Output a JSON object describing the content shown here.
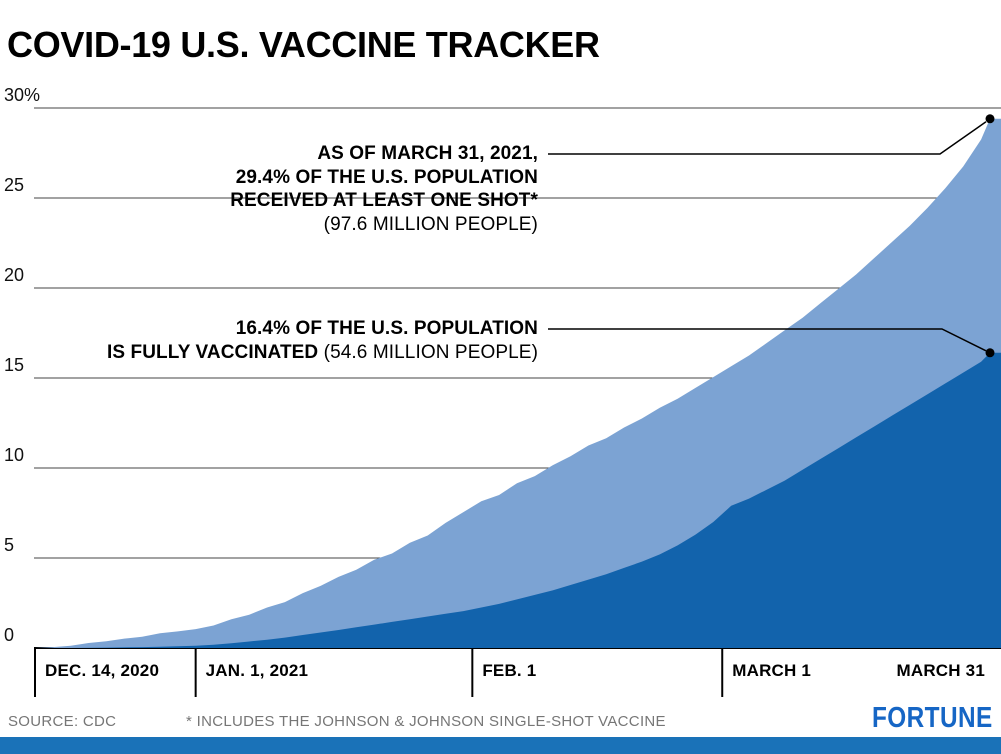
{
  "title": "COVID-19 U.S. VACCINE TRACKER",
  "annotations": {
    "one_shot": {
      "line1": "AS OF MARCH 31, 2021,",
      "line2": "29.4% OF THE U.S. POPULATION",
      "line3": "RECEIVED AT LEAST ONE SHOT*",
      "line4": "(97.6 MILLION PEOPLE)"
    },
    "fully": {
      "line1": "16.4% OF THE U.S. POPULATION",
      "line2_bold": "IS FULLY VACCINATED",
      "line2_regular": " (54.6 MILLION PEOPLE)"
    }
  },
  "footer": {
    "source": "SOURCE: CDC",
    "footnote": "* INCLUDES THE JOHNSON & JOHNSON SINGLE-SHOT VACCINE",
    "logo": "FORTUNE"
  },
  "colors": {
    "accent_blue": "#1a72b8",
    "logo_blue": "#1666c5",
    "light_area": "#7ca3d3",
    "dark_area": "#1263ac"
  },
  "chart_data": {
    "type": "area",
    "title": "COVID-19 U.S. Vaccine Tracker",
    "x_unit": "days since Dec. 14, 2020",
    "x_range": [
      0,
      107
    ],
    "y_range": [
      0,
      30
    ],
    "grid": true,
    "legend_position": "annotated-inline",
    "y_ticks": [
      {
        "label": "30%",
        "value": 30
      },
      {
        "label": "25",
        "value": 25
      },
      {
        "label": "20",
        "value": 20
      },
      {
        "label": "15",
        "value": 15
      },
      {
        "label": "10",
        "value": 10
      },
      {
        "label": "5",
        "value": 5
      },
      {
        "label": "0",
        "value": 0
      }
    ],
    "x_ticks": [
      {
        "label": "DEC. 14, 2020",
        "day": 0,
        "tick": true
      },
      {
        "label": "JAN. 1, 2021",
        "day": 18,
        "tick": true
      },
      {
        "label": "FEB. 1",
        "day": 49,
        "tick": true
      },
      {
        "label": "MARCH 1",
        "day": 77,
        "tick": true
      },
      {
        "label": "MARCH 31",
        "day": 107,
        "tick": false,
        "align": "right"
      }
    ],
    "colors": {
      "one_shot": "#7ca3d3",
      "fully_vaccinated": "#1263ac"
    },
    "series": [
      {
        "name": "Received at least one shot",
        "final_value_pct": 29.4,
        "final_people": "97.6 million",
        "points": [
          [
            0,
            0
          ],
          [
            2,
            0.05
          ],
          [
            4,
            0.12
          ],
          [
            6,
            0.28
          ],
          [
            8,
            0.38
          ],
          [
            10,
            0.52
          ],
          [
            12,
            0.62
          ],
          [
            14,
            0.82
          ],
          [
            16,
            0.92
          ],
          [
            18,
            1.05
          ],
          [
            20,
            1.25
          ],
          [
            22,
            1.6
          ],
          [
            24,
            1.85
          ],
          [
            26,
            2.25
          ],
          [
            28,
            2.55
          ],
          [
            30,
            3.05
          ],
          [
            32,
            3.45
          ],
          [
            34,
            3.95
          ],
          [
            36,
            4.35
          ],
          [
            38,
            4.9
          ],
          [
            40,
            5.25
          ],
          [
            42,
            5.85
          ],
          [
            44,
            6.25
          ],
          [
            46,
            6.95
          ],
          [
            48,
            7.55
          ],
          [
            50,
            8.15
          ],
          [
            52,
            8.5
          ],
          [
            54,
            9.15
          ],
          [
            56,
            9.55
          ],
          [
            58,
            10.15
          ],
          [
            60,
            10.65
          ],
          [
            62,
            11.25
          ],
          [
            64,
            11.65
          ],
          [
            66,
            12.25
          ],
          [
            68,
            12.75
          ],
          [
            70,
            13.35
          ],
          [
            72,
            13.85
          ],
          [
            74,
            14.45
          ],
          [
            76,
            15.05
          ],
          [
            78,
            15.65
          ],
          [
            80,
            16.25
          ],
          [
            82,
            16.95
          ],
          [
            84,
            17.65
          ],
          [
            86,
            18.35
          ],
          [
            88,
            19.15
          ],
          [
            90,
            19.95
          ],
          [
            92,
            20.75
          ],
          [
            94,
            21.65
          ],
          [
            96,
            22.55
          ],
          [
            98,
            23.45
          ],
          [
            100,
            24.45
          ],
          [
            102,
            25.55
          ],
          [
            104,
            26.75
          ],
          [
            106,
            28.25
          ],
          [
            107,
            29.4
          ]
        ]
      },
      {
        "name": "Fully vaccinated",
        "final_value_pct": 16.4,
        "final_people": "54.6 million",
        "points": [
          [
            0,
            0
          ],
          [
            4,
            0
          ],
          [
            8,
            0.02
          ],
          [
            12,
            0.05
          ],
          [
            14,
            0.07
          ],
          [
            16,
            0.1
          ],
          [
            18,
            0.13
          ],
          [
            20,
            0.18
          ],
          [
            22,
            0.26
          ],
          [
            24,
            0.36
          ],
          [
            26,
            0.46
          ],
          [
            28,
            0.58
          ],
          [
            30,
            0.72
          ],
          [
            32,
            0.86
          ],
          [
            34,
            1.0
          ],
          [
            36,
            1.15
          ],
          [
            38,
            1.3
          ],
          [
            40,
            1.45
          ],
          [
            42,
            1.6
          ],
          [
            44,
            1.75
          ],
          [
            46,
            1.9
          ],
          [
            48,
            2.05
          ],
          [
            50,
            2.25
          ],
          [
            52,
            2.45
          ],
          [
            54,
            2.7
          ],
          [
            56,
            2.95
          ],
          [
            58,
            3.2
          ],
          [
            60,
            3.5
          ],
          [
            62,
            3.8
          ],
          [
            64,
            4.1
          ],
          [
            66,
            4.45
          ],
          [
            68,
            4.8
          ],
          [
            70,
            5.2
          ],
          [
            72,
            5.7
          ],
          [
            74,
            6.3
          ],
          [
            76,
            7.0
          ],
          [
            78,
            7.9
          ],
          [
            80,
            8.3
          ],
          [
            82,
            8.8
          ],
          [
            84,
            9.3
          ],
          [
            86,
            9.9
          ],
          [
            88,
            10.5
          ],
          [
            90,
            11.1
          ],
          [
            92,
            11.7
          ],
          [
            94,
            12.3
          ],
          [
            96,
            12.9
          ],
          [
            98,
            13.5
          ],
          [
            100,
            14.1
          ],
          [
            102,
            14.7
          ],
          [
            104,
            15.3
          ],
          [
            106,
            15.9
          ],
          [
            107,
            16.4
          ]
        ]
      }
    ]
  }
}
